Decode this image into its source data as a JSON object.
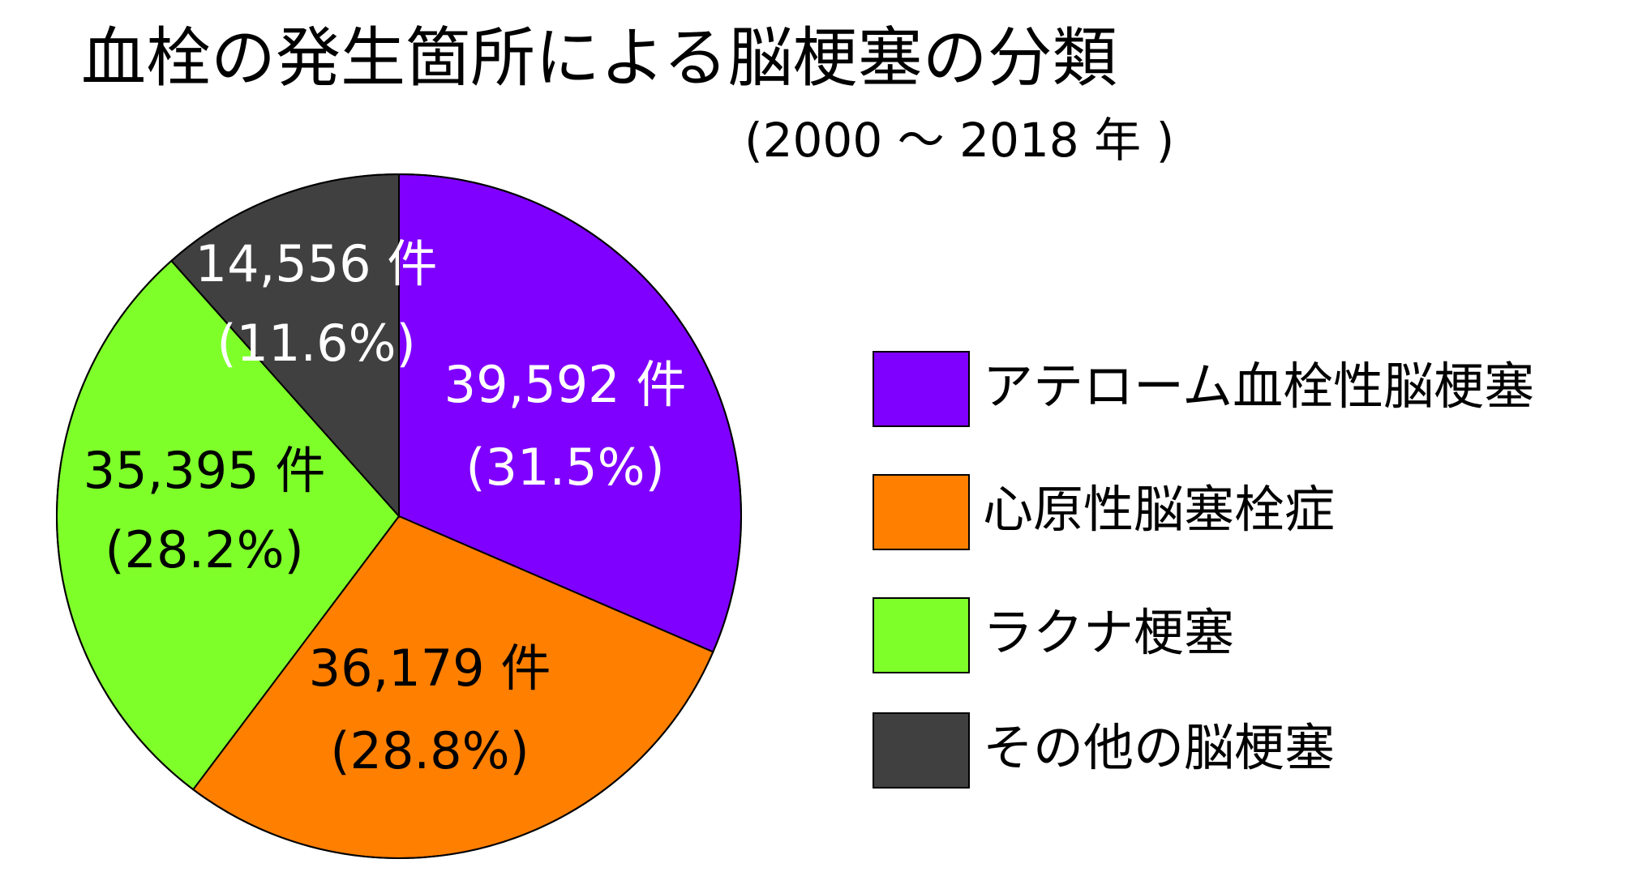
{
  "title": "血栓の発生箇所による脳梗塞の分類",
  "subtitle": "(2000 ～ 2018 年 )",
  "chart_data": {
    "type": "pie",
    "start_angle_deg": 0,
    "direction": "clockwise",
    "slices": [
      {
        "label": "アテローム血栓性脳梗塞",
        "count_label": "39,592 件",
        "percent_label": "(31.5%)",
        "value": 39592,
        "percent": 31.5,
        "color": "#7F00FF",
        "text_color": "#FFFFFF"
      },
      {
        "label": "心原性脳塞栓症",
        "count_label": "36,179 件",
        "percent_label": "(28.8%)",
        "value": 36179,
        "percent": 28.8,
        "color": "#FF7F00",
        "text_color": "#000000"
      },
      {
        "label": "ラクナ梗塞",
        "count_label": "35,395 件",
        "percent_label": "(28.2%)",
        "value": 35395,
        "percent": 28.2,
        "color": "#7FFF2A",
        "text_color": "#000000"
      },
      {
        "label": "その他の脳梗塞",
        "count_label": "14,556 件",
        "percent_label": "(11.6%)",
        "value": 14556,
        "percent": 11.6,
        "color": "#404040",
        "text_color": "#FFFFFF"
      }
    ],
    "legend_position": "right"
  }
}
